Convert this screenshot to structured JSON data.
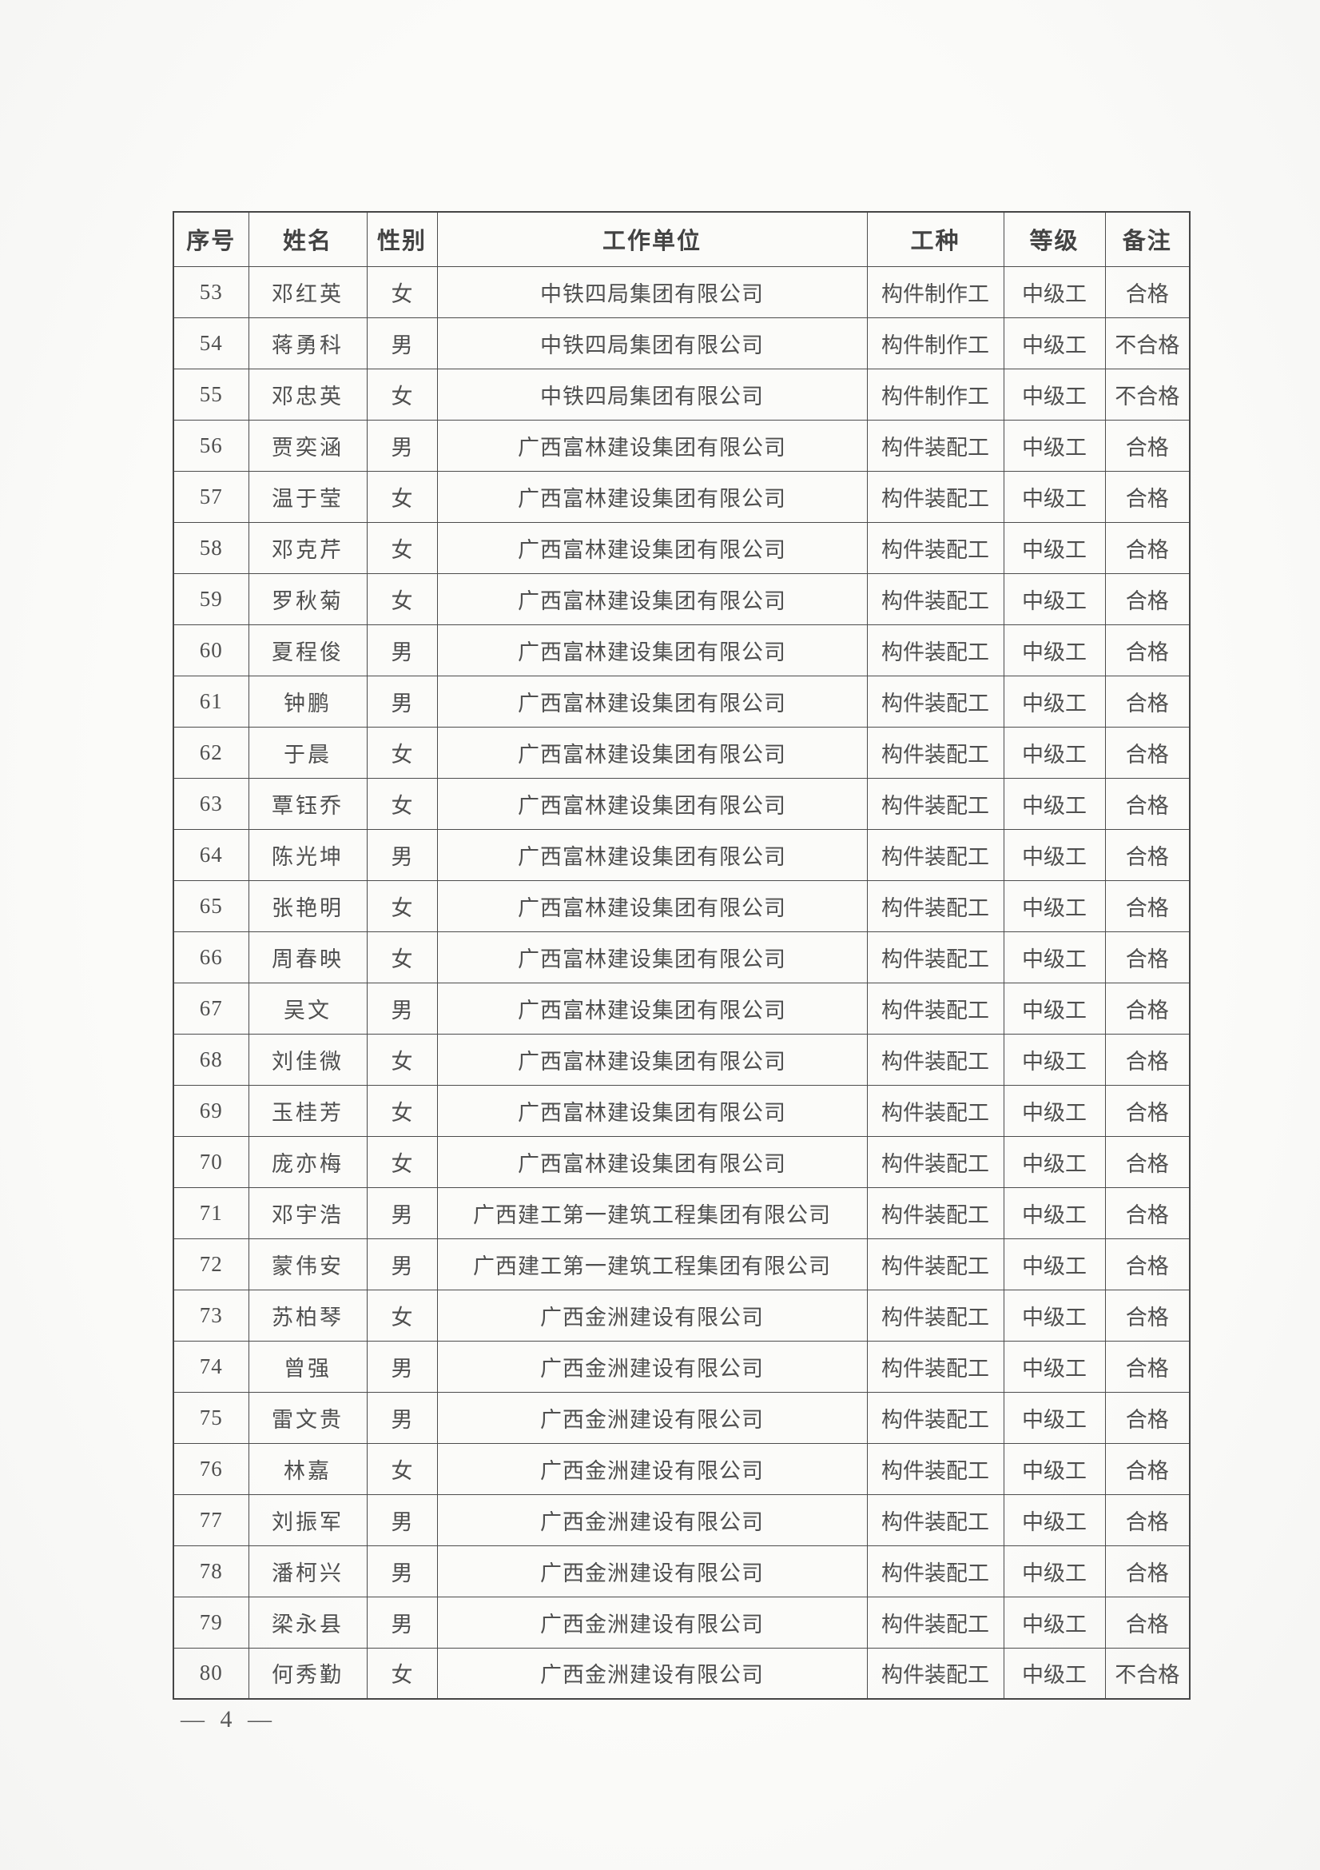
{
  "document": {
    "type": "scanned-certification-result-list",
    "footer": {
      "page_number": "— 4 —"
    }
  },
  "table": {
    "columns": [
      "序号",
      "姓名",
      "性别",
      "工作单位",
      "工种",
      "等级",
      "备注"
    ],
    "rows": [
      {
        "no": "53",
        "name": "邓红英",
        "gender": "女",
        "employer": "中铁四局集团有限公司",
        "trade": "构件制作工",
        "level": "中级工",
        "remark": "合格"
      },
      {
        "no": "54",
        "name": "蒋勇科",
        "gender": "男",
        "employer": "中铁四局集团有限公司",
        "trade": "构件制作工",
        "level": "中级工",
        "remark": "不合格"
      },
      {
        "no": "55",
        "name": "邓忠英",
        "gender": "女",
        "employer": "中铁四局集团有限公司",
        "trade": "构件制作工",
        "level": "中级工",
        "remark": "不合格"
      },
      {
        "no": "56",
        "name": "贾奕涵",
        "gender": "男",
        "employer": "广西富林建设集团有限公司",
        "trade": "构件装配工",
        "level": "中级工",
        "remark": "合格"
      },
      {
        "no": "57",
        "name": "温于莹",
        "gender": "女",
        "employer": "广西富林建设集团有限公司",
        "trade": "构件装配工",
        "level": "中级工",
        "remark": "合格"
      },
      {
        "no": "58",
        "name": "邓克芹",
        "gender": "女",
        "employer": "广西富林建设集团有限公司",
        "trade": "构件装配工",
        "level": "中级工",
        "remark": "合格"
      },
      {
        "no": "59",
        "name": "罗秋菊",
        "gender": "女",
        "employer": "广西富林建设集团有限公司",
        "trade": "构件装配工",
        "level": "中级工",
        "remark": "合格"
      },
      {
        "no": "60",
        "name": "夏程俊",
        "gender": "男",
        "employer": "广西富林建设集团有限公司",
        "trade": "构件装配工",
        "level": "中级工",
        "remark": "合格"
      },
      {
        "no": "61",
        "name": "钟鹏",
        "gender": "男",
        "employer": "广西富林建设集团有限公司",
        "trade": "构件装配工",
        "level": "中级工",
        "remark": "合格"
      },
      {
        "no": "62",
        "name": "于晨",
        "gender": "女",
        "employer": "广西富林建设集团有限公司",
        "trade": "构件装配工",
        "level": "中级工",
        "remark": "合格"
      },
      {
        "no": "63",
        "name": "覃钰乔",
        "gender": "女",
        "employer": "广西富林建设集团有限公司",
        "trade": "构件装配工",
        "level": "中级工",
        "remark": "合格"
      },
      {
        "no": "64",
        "name": "陈光坤",
        "gender": "男",
        "employer": "广西富林建设集团有限公司",
        "trade": "构件装配工",
        "level": "中级工",
        "remark": "合格"
      },
      {
        "no": "65",
        "name": "张艳明",
        "gender": "女",
        "employer": "广西富林建设集团有限公司",
        "trade": "构件装配工",
        "level": "中级工",
        "remark": "合格"
      },
      {
        "no": "66",
        "name": "周春映",
        "gender": "女",
        "employer": "广西富林建设集团有限公司",
        "trade": "构件装配工",
        "level": "中级工",
        "remark": "合格"
      },
      {
        "no": "67",
        "name": "吴文",
        "gender": "男",
        "employer": "广西富林建设集团有限公司",
        "trade": "构件装配工",
        "level": "中级工",
        "remark": "合格"
      },
      {
        "no": "68",
        "name": "刘佳微",
        "gender": "女",
        "employer": "广西富林建设集团有限公司",
        "trade": "构件装配工",
        "level": "中级工",
        "remark": "合格"
      },
      {
        "no": "69",
        "name": "玉桂芳",
        "gender": "女",
        "employer": "广西富林建设集团有限公司",
        "trade": "构件装配工",
        "level": "中级工",
        "remark": "合格"
      },
      {
        "no": "70",
        "name": "庞亦梅",
        "gender": "女",
        "employer": "广西富林建设集团有限公司",
        "trade": "构件装配工",
        "level": "中级工",
        "remark": "合格"
      },
      {
        "no": "71",
        "name": "邓宇浩",
        "gender": "男",
        "employer": "广西建工第一建筑工程集团有限公司",
        "trade": "构件装配工",
        "level": "中级工",
        "remark": "合格"
      },
      {
        "no": "72",
        "name": "蒙伟安",
        "gender": "男",
        "employer": "广西建工第一建筑工程集团有限公司",
        "trade": "构件装配工",
        "level": "中级工",
        "remark": "合格"
      },
      {
        "no": "73",
        "name": "苏柏琴",
        "gender": "女",
        "employer": "广西金洲建设有限公司",
        "trade": "构件装配工",
        "level": "中级工",
        "remark": "合格"
      },
      {
        "no": "74",
        "name": "曾强",
        "gender": "男",
        "employer": "广西金洲建设有限公司",
        "trade": "构件装配工",
        "level": "中级工",
        "remark": "合格"
      },
      {
        "no": "75",
        "name": "雷文贵",
        "gender": "男",
        "employer": "广西金洲建设有限公司",
        "trade": "构件装配工",
        "level": "中级工",
        "remark": "合格"
      },
      {
        "no": "76",
        "name": "林嘉",
        "gender": "女",
        "employer": "广西金洲建设有限公司",
        "trade": "构件装配工",
        "level": "中级工",
        "remark": "合格"
      },
      {
        "no": "77",
        "name": "刘振军",
        "gender": "男",
        "employer": "广西金洲建设有限公司",
        "trade": "构件装配工",
        "level": "中级工",
        "remark": "合格"
      },
      {
        "no": "78",
        "name": "潘柯兴",
        "gender": "男",
        "employer": "广西金洲建设有限公司",
        "trade": "构件装配工",
        "level": "中级工",
        "remark": "合格"
      },
      {
        "no": "79",
        "name": "梁永县",
        "gender": "男",
        "employer": "广西金洲建设有限公司",
        "trade": "构件装配工",
        "level": "中级工",
        "remark": "合格"
      },
      {
        "no": "80",
        "name": "何秀勤",
        "gender": "女",
        "employer": "广西金洲建设有限公司",
        "trade": "构件装配工",
        "level": "中级工",
        "remark": "不合格"
      }
    ]
  }
}
